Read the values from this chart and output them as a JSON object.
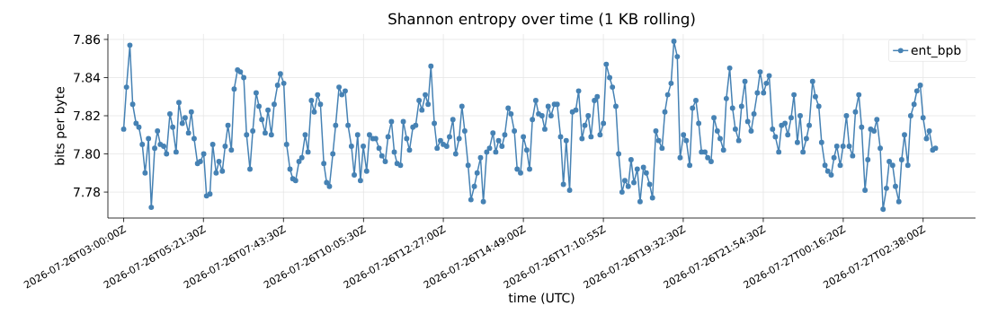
{
  "chart_data": {
    "type": "line",
    "title": "Shannon entropy over time (1 KB rolling)",
    "xlabel": "time (UTC)",
    "ylabel": "bits per byte",
    "x": [
      "2026-07-26T03:00",
      "2026-07-26T03:05",
      "2026-07-26T03:11",
      "2026-07-26T03:16",
      "2026-07-26T03:22",
      "2026-07-26T03:27",
      "2026-07-26T03:33",
      "2026-07-26T03:38",
      "2026-07-26T03:44",
      "2026-07-26T03:49",
      "2026-07-26T03:55",
      "2026-07-26T04:00",
      "2026-07-26T04:05",
      "2026-07-26T04:11",
      "2026-07-26T04:16",
      "2026-07-26T04:22",
      "2026-07-26T04:27",
      "2026-07-26T04:33",
      "2026-07-26T04:38",
      "2026-07-26T04:44",
      "2026-07-26T04:49",
      "2026-07-26T04:55",
      "2026-07-26T05:00",
      "2026-07-26T05:05",
      "2026-07-26T05:11",
      "2026-07-26T05:16",
      "2026-07-26T05:22",
      "2026-07-26T05:27",
      "2026-07-26T05:33",
      "2026-07-26T05:38",
      "2026-07-26T05:44",
      "2026-07-26T05:49",
      "2026-07-26T05:55",
      "2026-07-26T06:00",
      "2026-07-26T06:05",
      "2026-07-26T06:11",
      "2026-07-26T06:16",
      "2026-07-26T06:22",
      "2026-07-26T06:27",
      "2026-07-26T06:33",
      "2026-07-26T06:38",
      "2026-07-26T06:44",
      "2026-07-26T06:49",
      "2026-07-26T06:55",
      "2026-07-26T07:00",
      "2026-07-26T07:05",
      "2026-07-26T07:11",
      "2026-07-26T07:16",
      "2026-07-26T07:22",
      "2026-07-26T07:27",
      "2026-07-26T07:33",
      "2026-07-26T07:38",
      "2026-07-26T07:44",
      "2026-07-26T07:49",
      "2026-07-26T07:55",
      "2026-07-26T08:00",
      "2026-07-26T08:05",
      "2026-07-26T08:11",
      "2026-07-26T08:16",
      "2026-07-26T08:22",
      "2026-07-26T08:27",
      "2026-07-26T08:33",
      "2026-07-26T08:38",
      "2026-07-26T08:44",
      "2026-07-26T08:49",
      "2026-07-26T08:55",
      "2026-07-26T09:00",
      "2026-07-26T09:05",
      "2026-07-26T09:11",
      "2026-07-26T09:16",
      "2026-07-26T09:22",
      "2026-07-26T09:27",
      "2026-07-26T09:33",
      "2026-07-26T09:38",
      "2026-07-26T09:44",
      "2026-07-26T09:49",
      "2026-07-26T09:55",
      "2026-07-26T10:00",
      "2026-07-26T10:05",
      "2026-07-26T10:11",
      "2026-07-26T10:16",
      "2026-07-26T10:22",
      "2026-07-26T10:27",
      "2026-07-26T10:33",
      "2026-07-26T10:38",
      "2026-07-26T10:44",
      "2026-07-26T10:49",
      "2026-07-26T10:55",
      "2026-07-26T11:00",
      "2026-07-26T11:05",
      "2026-07-26T11:11",
      "2026-07-26T11:16",
      "2026-07-26T11:22",
      "2026-07-26T11:27",
      "2026-07-26T11:33",
      "2026-07-26T11:38",
      "2026-07-26T11:44",
      "2026-07-26T11:49",
      "2026-07-26T11:55",
      "2026-07-26T12:00",
      "2026-07-26T12:05",
      "2026-07-26T12:11",
      "2026-07-26T12:16",
      "2026-07-26T12:22",
      "2026-07-26T12:27",
      "2026-07-26T12:33",
      "2026-07-26T12:38",
      "2026-07-26T12:44",
      "2026-07-26T12:49",
      "2026-07-26T12:55",
      "2026-07-26T13:00",
      "2026-07-26T13:05",
      "2026-07-26T13:11",
      "2026-07-26T13:16",
      "2026-07-26T13:22",
      "2026-07-26T13:27",
      "2026-07-26T13:33",
      "2026-07-26T13:38",
      "2026-07-26T13:44",
      "2026-07-26T13:49",
      "2026-07-26T13:55",
      "2026-07-26T14:00",
      "2026-07-26T14:05",
      "2026-07-26T14:11",
      "2026-07-26T14:16",
      "2026-07-26T14:22",
      "2026-07-26T14:27",
      "2026-07-26T14:33",
      "2026-07-26T14:38",
      "2026-07-26T14:44",
      "2026-07-26T14:49",
      "2026-07-26T14:55",
      "2026-07-26T15:00",
      "2026-07-26T15:05",
      "2026-07-26T15:11",
      "2026-07-26T15:16",
      "2026-07-26T15:22",
      "2026-07-26T15:27",
      "2026-07-26T15:33",
      "2026-07-26T15:38",
      "2026-07-26T15:44",
      "2026-07-26T15:49",
      "2026-07-26T15:55",
      "2026-07-26T16:00",
      "2026-07-26T16:05",
      "2026-07-26T16:11",
      "2026-07-26T16:16",
      "2026-07-26T16:22",
      "2026-07-26T16:27",
      "2026-07-26T16:33",
      "2026-07-26T16:38",
      "2026-07-26T16:44",
      "2026-07-26T16:49",
      "2026-07-26T16:55",
      "2026-07-26T17:00",
      "2026-07-26T17:05",
      "2026-07-26T17:11",
      "2026-07-26T17:16",
      "2026-07-26T17:22",
      "2026-07-26T17:27",
      "2026-07-26T17:33",
      "2026-07-26T17:38",
      "2026-07-26T17:44",
      "2026-07-26T17:49",
      "2026-07-26T17:55",
      "2026-07-26T18:00",
      "2026-07-26T18:05",
      "2026-07-26T18:11",
      "2026-07-26T18:16",
      "2026-07-26T18:22",
      "2026-07-26T18:27",
      "2026-07-26T18:33",
      "2026-07-26T18:38",
      "2026-07-26T18:44",
      "2026-07-26T18:49",
      "2026-07-26T18:55",
      "2026-07-26T19:00",
      "2026-07-26T19:05",
      "2026-07-26T19:11",
      "2026-07-26T19:16",
      "2026-07-26T19:22",
      "2026-07-26T19:27",
      "2026-07-26T19:33",
      "2026-07-26T19:38",
      "2026-07-26T19:44",
      "2026-07-26T19:49",
      "2026-07-26T19:55",
      "2026-07-26T20:00",
      "2026-07-26T20:05",
      "2026-07-26T20:11",
      "2026-07-26T20:16",
      "2026-07-26T20:22",
      "2026-07-26T20:27",
      "2026-07-26T20:33",
      "2026-07-26T20:38",
      "2026-07-26T20:44",
      "2026-07-26T20:49",
      "2026-07-26T20:55",
      "2026-07-26T21:00",
      "2026-07-26T21:05",
      "2026-07-26T21:11",
      "2026-07-26T21:16",
      "2026-07-26T21:22",
      "2026-07-26T21:27",
      "2026-07-26T21:33",
      "2026-07-26T21:38",
      "2026-07-26T21:44",
      "2026-07-26T21:49",
      "2026-07-26T21:55",
      "2026-07-26T22:00",
      "2026-07-26T22:05",
      "2026-07-26T22:11",
      "2026-07-26T22:16",
      "2026-07-26T22:22",
      "2026-07-26T22:27",
      "2026-07-26T22:33",
      "2026-07-26T22:38",
      "2026-07-26T22:44",
      "2026-07-26T22:49",
      "2026-07-26T22:55",
      "2026-07-26T23:00",
      "2026-07-26T23:05",
      "2026-07-26T23:11",
      "2026-07-26T23:16",
      "2026-07-26T23:22",
      "2026-07-26T23:27",
      "2026-07-26T23:33",
      "2026-07-26T23:38",
      "2026-07-26T23:44",
      "2026-07-26T23:49",
      "2026-07-26T23:55",
      "2026-07-27T00:00",
      "2026-07-27T00:05",
      "2026-07-27T00:11",
      "2026-07-27T00:16",
      "2026-07-27T00:22",
      "2026-07-27T00:27",
      "2026-07-27T00:33",
      "2026-07-27T00:38",
      "2026-07-27T00:44",
      "2026-07-27T00:49",
      "2026-07-27T00:55",
      "2026-07-27T01:00",
      "2026-07-27T01:05",
      "2026-07-27T01:11",
      "2026-07-27T01:16",
      "2026-07-27T01:22",
      "2026-07-27T01:27",
      "2026-07-27T01:33",
      "2026-07-27T01:38",
      "2026-07-27T01:44",
      "2026-07-27T01:49",
      "2026-07-27T01:55",
      "2026-07-27T02:00",
      "2026-07-27T02:05",
      "2026-07-27T02:11",
      "2026-07-27T02:16",
      "2026-07-27T02:22",
      "2026-07-27T02:27",
      "2026-07-27T02:33",
      "2026-07-27T02:38",
      "2026-07-27T02:44",
      "2026-07-27T02:49",
      "2026-07-27T02:55",
      "2026-07-27T03:00"
    ],
    "series": [
      {
        "name": "ent_bpb",
        "color": "#4682b4",
        "values": [
          7.813,
          7.835,
          7.857,
          7.826,
          7.816,
          7.814,
          7.805,
          7.79,
          7.808,
          7.772,
          7.803,
          7.812,
          7.805,
          7.804,
          7.8,
          7.821,
          7.814,
          7.801,
          7.827,
          7.816,
          7.819,
          7.811,
          7.822,
          7.808,
          7.795,
          7.796,
          7.8,
          7.778,
          7.779,
          7.805,
          7.79,
          7.796,
          7.791,
          7.804,
          7.815,
          7.802,
          7.834,
          7.844,
          7.843,
          7.84,
          7.81,
          7.792,
          7.812,
          7.832,
          7.825,
          7.818,
          7.811,
          7.823,
          7.81,
          7.826,
          7.836,
          7.842,
          7.837,
          7.805,
          7.792,
          7.787,
          7.786,
          7.796,
          7.798,
          7.81,
          7.801,
          7.828,
          7.822,
          7.831,
          7.826,
          7.795,
          7.785,
          7.783,
          7.8,
          7.815,
          7.835,
          7.831,
          7.833,
          7.815,
          7.804,
          7.789,
          7.81,
          7.786,
          7.804,
          7.791,
          7.81,
          7.808,
          7.808,
          7.803,
          7.799,
          7.796,
          7.809,
          7.817,
          7.801,
          7.795,
          7.794,
          7.817,
          7.808,
          7.802,
          7.814,
          7.815,
          7.828,
          7.823,
          7.831,
          7.826,
          7.846,
          7.816,
          7.803,
          7.807,
          7.805,
          7.804,
          7.809,
          7.818,
          7.8,
          7.808,
          7.825,
          7.812,
          7.794,
          7.776,
          7.783,
          7.79,
          7.798,
          7.775,
          7.801,
          7.803,
          7.811,
          7.801,
          7.807,
          7.804,
          7.81,
          7.824,
          7.821,
          7.812,
          7.792,
          7.79,
          7.809,
          7.802,
          7.792,
          7.818,
          7.828,
          7.821,
          7.82,
          7.813,
          7.825,
          7.82,
          7.826,
          7.826,
          7.809,
          7.784,
          7.807,
          7.781,
          7.822,
          7.823,
          7.833,
          7.808,
          7.815,
          7.82,
          7.809,
          7.828,
          7.83,
          7.81,
          7.816,
          7.847,
          7.84,
          7.835,
          7.825,
          7.8,
          7.78,
          7.786,
          7.783,
          7.797,
          7.785,
          7.792,
          7.775,
          7.793,
          7.79,
          7.784,
          7.777,
          7.812,
          7.807,
          7.803,
          7.822,
          7.831,
          7.837,
          7.859,
          7.851,
          7.798,
          7.81,
          7.807,
          7.794,
          7.824,
          7.828,
          7.816,
          7.801,
          7.801,
          7.798,
          7.796,
          7.819,
          7.812,
          7.808,
          7.802,
          7.829,
          7.845,
          7.824,
          7.813,
          7.807,
          7.825,
          7.838,
          7.817,
          7.812,
          7.821,
          7.832,
          7.843,
          7.832,
          7.837,
          7.841,
          7.813,
          7.809,
          7.801,
          7.815,
          7.816,
          7.81,
          7.819,
          7.831,
          7.806,
          7.82,
          7.801,
          7.808,
          7.815,
          7.838,
          7.83,
          7.825,
          7.806,
          7.794,
          7.791,
          7.789,
          7.798,
          7.804,
          7.794,
          7.804,
          7.82,
          7.804,
          7.799,
          7.822,
          7.831,
          7.814,
          7.781,
          7.797,
          7.813,
          7.812,
          7.818,
          7.803,
          7.771,
          7.782,
          7.796,
          7.794,
          7.783,
          7.775,
          7.797,
          7.81,
          7.794,
          7.82,
          7.826,
          7.833,
          7.836,
          7.819,
          7.808,
          7.812,
          7.802,
          7.803
        ]
      }
    ],
    "xlim": [
      "2026-07-26T02:32",
      "2026-07-27T04:11"
    ],
    "ylim": [
      7.7664,
      7.8628
    ],
    "xticks": [
      {
        "value": "2026-07-26T03:00:00",
        "label": "2026-07-26T03:00:00Z"
      },
      {
        "value": "2026-07-26T05:21:30",
        "label": "2026-07-26T05:21:30Z"
      },
      {
        "value": "2026-07-26T07:43:30",
        "label": "2026-07-26T07:43:30Z"
      },
      {
        "value": "2026-07-26T10:05:30",
        "label": "2026-07-26T10:05:30Z"
      },
      {
        "value": "2026-07-26T12:27:00",
        "label": "2026-07-26T12:27:00Z"
      },
      {
        "value": "2026-07-26T14:49:00",
        "label": "2026-07-26T14:49:00Z"
      },
      {
        "value": "2026-07-26T17:10:55",
        "label": "2026-07-26T17:10:55Z"
      },
      {
        "value": "2026-07-26T19:32:30",
        "label": "2026-07-26T19:32:30Z"
      },
      {
        "value": "2026-07-26T21:54:30",
        "label": "2026-07-26T21:54:30Z"
      },
      {
        "value": "2026-07-27T00:16:20",
        "label": "2026-07-27T00:16:20Z"
      },
      {
        "value": "2026-07-27T02:38:00",
        "label": "2026-07-27T02:38:00Z"
      }
    ],
    "yticks": [
      7.78,
      {
        "value": 7.8,
        "label": "7.80"
      },
      7.82,
      7.84,
      7.86
    ],
    "grid": true,
    "legend": "top right",
    "marker": "circle",
    "line_style": "solid"
  }
}
